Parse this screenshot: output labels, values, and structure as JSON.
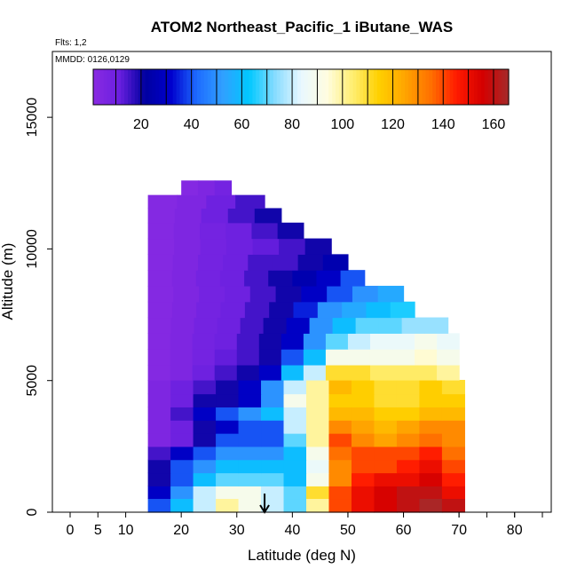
{
  "chart_data": {
    "type": "heatmap",
    "title": "ATOM2 Northeast_Pacific_1 iButane_WAS",
    "flights_label": "Flts: 1,2",
    "dates_label": "MMDD: 0126,0129",
    "xlabel": "Latitude (deg N)",
    "ylabel": "Altitude (m)",
    "xlim": [
      0,
      85
    ],
    "ylim": [
      0,
      17500
    ],
    "x_ticks": [
      0,
      5,
      10,
      20,
      30,
      40,
      50,
      60,
      70,
      80
    ],
    "y_ticks": [
      0,
      5000,
      10000,
      15000
    ],
    "colorbar": {
      "range": [
        1,
        166
      ],
      "ticks": [
        20,
        40,
        60,
        80,
        100,
        120,
        140,
        160
      ],
      "colors": [
        "#8a2be2",
        "#6a1fe0",
        "#0000a0",
        "#0000cd",
        "#1e6cff",
        "#30a0ff",
        "#00c8ff",
        "#87dcff",
        "#e8f8ff",
        "#fffde0",
        "#ffee70",
        "#ffd000",
        "#ffa500",
        "#ff7000",
        "#ff1a00",
        "#d40000",
        "#a52a2a"
      ]
    },
    "marker_arrow_latitude": 35,
    "layers": [
      {
        "alt": 300,
        "lat_start": 14,
        "lat_end": 71,
        "values": [
          40,
          60,
          80,
          100,
          90,
          80,
          70,
          100,
          140,
          150,
          155,
          160,
          165,
          160
        ]
      },
      {
        "alt": 750,
        "lat_start": 14,
        "lat_end": 71,
        "values": [
          30,
          50,
          80,
          90,
          90,
          80,
          70,
          110,
          140,
          150,
          155,
          160,
          160,
          150
        ]
      },
      {
        "alt": 1250,
        "lat_start": 14,
        "lat_end": 71,
        "values": [
          20,
          40,
          60,
          70,
          70,
          70,
          60,
          90,
          130,
          145,
          150,
          150,
          155,
          145
        ]
      },
      {
        "alt": 1750,
        "lat_start": 14,
        "lat_end": 71,
        "values": [
          20,
          40,
          50,
          60,
          60,
          60,
          60,
          85,
          130,
          140,
          140,
          145,
          150,
          140
        ]
      },
      {
        "alt": 2250,
        "lat_start": 14,
        "lat_end": 71,
        "values": [
          15,
          30,
          40,
          50,
          50,
          50,
          60,
          90,
          135,
          140,
          140,
          140,
          145,
          135
        ]
      },
      {
        "alt": 2750,
        "lat_start": 14,
        "lat_end": 71,
        "values": [
          5,
          10,
          20,
          40,
          40,
          40,
          70,
          100,
          140,
          130,
          125,
          130,
          135,
          130
        ]
      },
      {
        "alt": 3250,
        "lat_start": 14,
        "lat_end": 71,
        "values": [
          5,
          10,
          20,
          30,
          40,
          40,
          80,
          100,
          130,
          125,
          120,
          125,
          130,
          130
        ]
      },
      {
        "alt": 3750,
        "lat_start": 14,
        "lat_end": 71,
        "values": [
          5,
          15,
          30,
          40,
          50,
          60,
          80,
          100,
          120,
          120,
          115,
          115,
          120,
          120
        ]
      },
      {
        "alt": 4250,
        "lat_start": 14,
        "lat_end": 71,
        "values": [
          5,
          10,
          20,
          20,
          30,
          50,
          90,
          100,
          115,
          115,
          110,
          110,
          115,
          115
        ]
      },
      {
        "alt": 4750,
        "lat_start": 14,
        "lat_end": 71,
        "values": [
          5,
          10,
          15,
          20,
          30,
          50,
          80,
          100,
          120,
          115,
          110,
          110,
          115,
          110
        ]
      },
      {
        "alt": 5300,
        "lat_start": 14,
        "lat_end": 70,
        "values": [
          3,
          5,
          10,
          15,
          20,
          30,
          60,
          80,
          110,
          110,
          105,
          105,
          105,
          100
        ]
      },
      {
        "alt": 5900,
        "lat_start": 14,
        "lat_end": 70,
        "values": [
          3,
          5,
          8,
          12,
          15,
          20,
          40,
          60,
          90,
          90,
          90,
          90,
          95,
          90
        ]
      },
      {
        "alt": 6500,
        "lat_start": 14,
        "lat_end": 70,
        "values": [
          3,
          5,
          8,
          10,
          15,
          20,
          30,
          50,
          70,
          80,
          85,
          85,
          90,
          85
        ]
      },
      {
        "alt": 7100,
        "lat_start": 14,
        "lat_end": 68,
        "values": [
          3,
          5,
          8,
          10,
          15,
          20,
          30,
          50,
          60,
          70,
          70,
          75,
          75
        ]
      },
      {
        "alt": 7700,
        "lat_start": 14,
        "lat_end": 62,
        "values": [
          3,
          5,
          8,
          10,
          15,
          20,
          35,
          50,
          55,
          60,
          65
        ]
      },
      {
        "alt": 8300,
        "lat_start": 14,
        "lat_end": 60,
        "values": [
          3,
          5,
          8,
          10,
          15,
          20,
          30,
          40,
          50,
          55
        ]
      },
      {
        "alt": 8900,
        "lat_start": 14,
        "lat_end": 53,
        "values": [
          3,
          5,
          8,
          10,
          15,
          20,
          25,
          30,
          40
        ]
      },
      {
        "alt": 9500,
        "lat_start": 14,
        "lat_end": 50,
        "values": [
          3,
          5,
          8,
          10,
          15,
          15,
          20,
          25
        ]
      },
      {
        "alt": 10100,
        "lat_start": 14,
        "lat_end": 47,
        "values": [
          3,
          5,
          8,
          10,
          12,
          15,
          20
        ]
      },
      {
        "alt": 10700,
        "lat_start": 14,
        "lat_end": 42,
        "values": [
          3,
          5,
          8,
          10,
          15,
          20
        ]
      },
      {
        "alt": 11300,
        "lat_start": 14,
        "lat_end": 38,
        "values": [
          3,
          5,
          10,
          15,
          20
        ]
      },
      {
        "alt": 11800,
        "lat_start": 14,
        "lat_end": 35,
        "values": [
          3,
          5,
          10,
          15
        ]
      },
      {
        "alt": 12300,
        "lat_start": 20,
        "lat_end": 29,
        "values": [
          3,
          5,
          8
        ]
      }
    ],
    "grid": false
  }
}
